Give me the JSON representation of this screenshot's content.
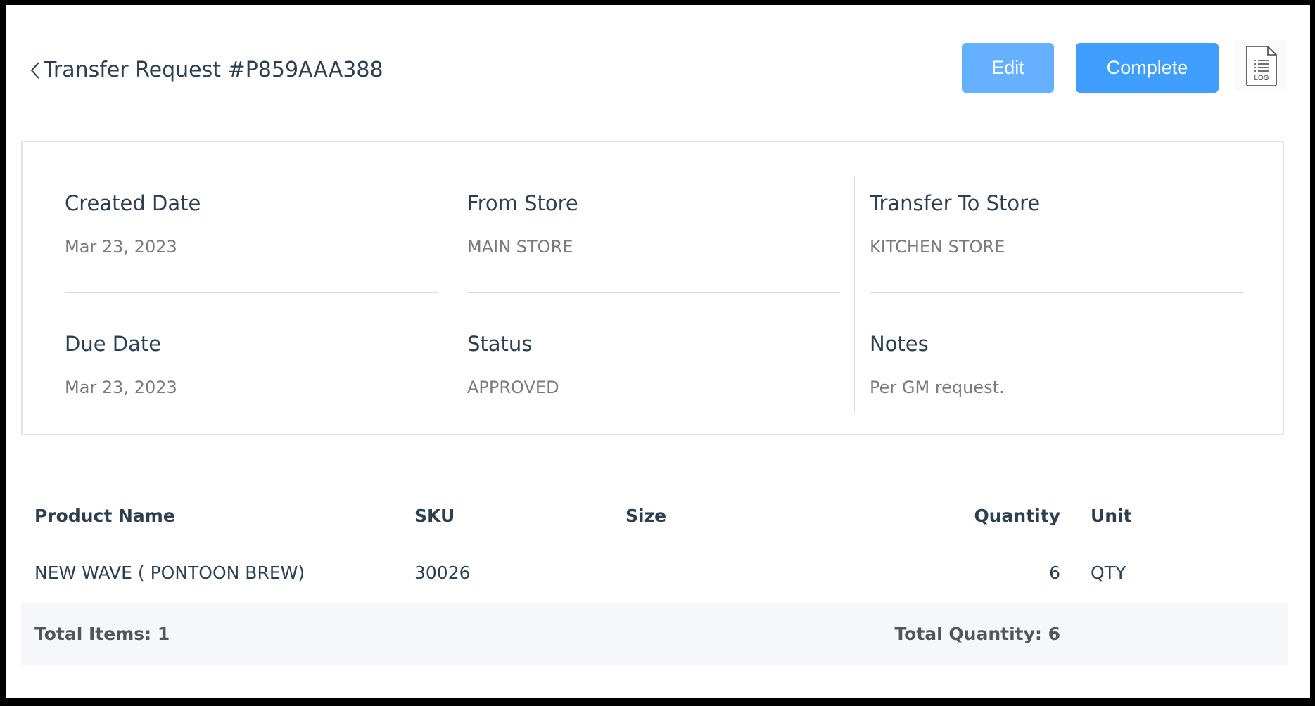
{
  "header": {
    "title": "Transfer Request #P859AAA388",
    "edit_label": "Edit",
    "complete_label": "Complete",
    "log_icon_text": "LOG"
  },
  "colors": {
    "edit": "#66b1ff",
    "complete": "#409eff"
  },
  "details": [
    {
      "label": "Created Date",
      "value": "Mar 23, 2023"
    },
    {
      "label": "From Store",
      "value": "MAIN STORE"
    },
    {
      "label": "Transfer To Store",
      "value": "KITCHEN STORE"
    },
    {
      "label": "Due Date",
      "value": "Mar 23, 2023"
    },
    {
      "label": "Status",
      "value": "APPROVED"
    },
    {
      "label": "Notes",
      "value": "Per GM request."
    }
  ],
  "table": {
    "columns": [
      "Product Name",
      "SKU",
      "Size",
      "Quantity",
      "Unit"
    ],
    "rows": [
      {
        "product": "NEW WAVE ( PONTOON BREW)",
        "sku": "30026",
        "size": "",
        "quantity": "6",
        "unit": "QTY"
      }
    ],
    "footer": {
      "total_items": "Total Items: 1",
      "total_quantity": "Total Quantity: 6"
    }
  }
}
